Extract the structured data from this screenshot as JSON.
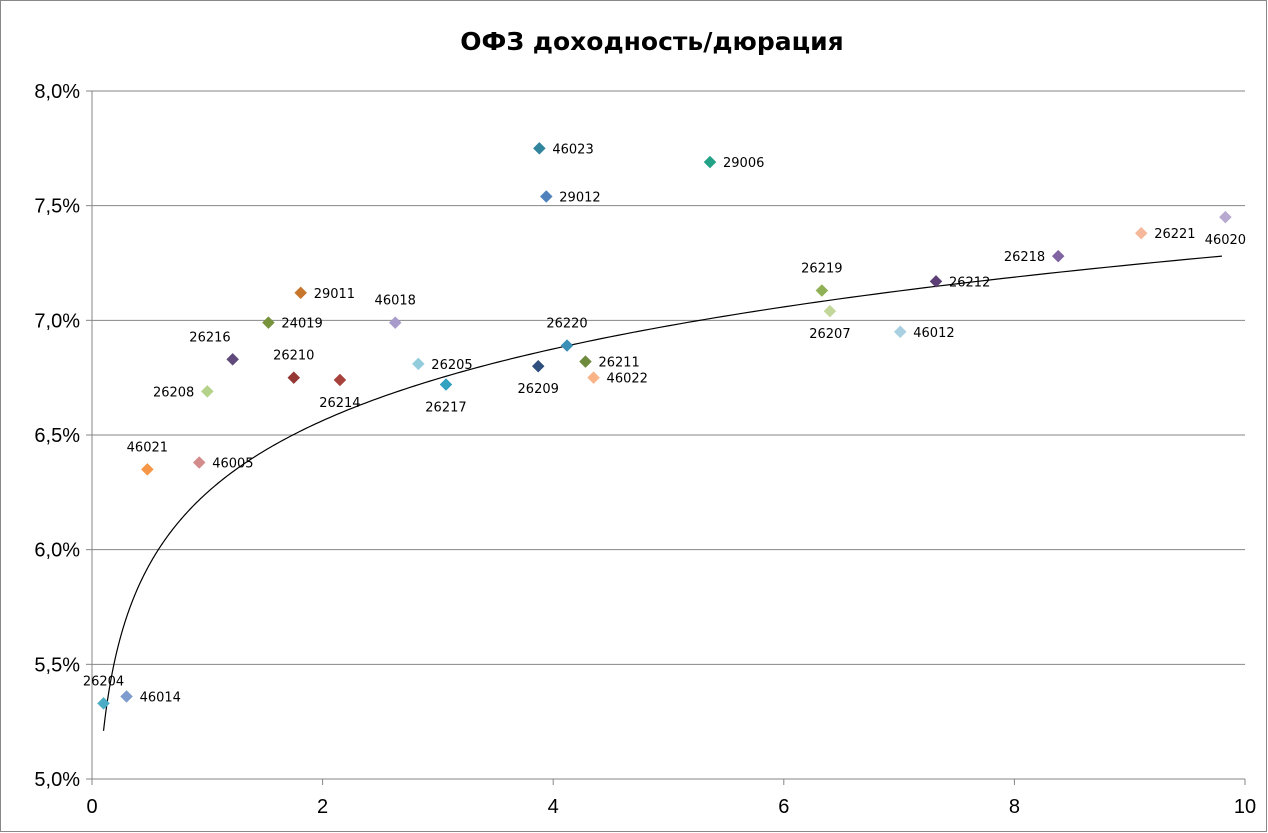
{
  "chart_data": {
    "type": "scatter",
    "title": "ОФЗ доходность/дюрация",
    "xlabel": "",
    "ylabel": "",
    "xlim": [
      0,
      10
    ],
    "ylim": [
      5.0,
      8.0
    ],
    "x_ticks": [
      0,
      2,
      4,
      6,
      8,
      10
    ],
    "y_ticks": [
      5.0,
      5.5,
      6.0,
      6.5,
      7.0,
      7.5,
      8.0
    ],
    "x_tick_labels": [
      "0",
      "2",
      "4",
      "6",
      "8",
      "10"
    ],
    "y_tick_labels": [
      "5,0%",
      "5,5%",
      "6,0%",
      "6,5%",
      "7,0%",
      "7,5%",
      "8,0%"
    ],
    "grid": "horizontal",
    "legend": "none",
    "trendline": {
      "type": "logarithmic",
      "from": [
        0.1,
        5.21
      ],
      "to": [
        9.8,
        7.28
      ]
    },
    "series": [
      {
        "label": "26204",
        "x": 0.1,
        "y": 5.33,
        "color": "#4bacc6",
        "label_pos": "above"
      },
      {
        "label": "46014",
        "x": 0.3,
        "y": 5.36,
        "color": "#7f9ccf",
        "label_pos": "right"
      },
      {
        "label": "46021",
        "x": 0.48,
        "y": 6.35,
        "color": "#f79646",
        "label_pos": "above"
      },
      {
        "label": "46005",
        "x": 0.93,
        "y": 6.38,
        "color": "#d48b8b",
        "label_pos": "right"
      },
      {
        "label": "26208",
        "x": 1.0,
        "y": 6.69,
        "color": "#b5d28a",
        "label_pos": "left"
      },
      {
        "label": "26216",
        "x": 1.22,
        "y": 6.83,
        "color": "#604a7b",
        "label_pos": "aboveleft"
      },
      {
        "label": "24019",
        "x": 1.53,
        "y": 6.99,
        "color": "#77933c",
        "label_pos": "right"
      },
      {
        "label": "26210",
        "x": 1.75,
        "y": 6.75,
        "color": "#953735",
        "label_pos": "above"
      },
      {
        "label": "29011",
        "x": 1.81,
        "y": 7.12,
        "color": "#c9762d",
        "label_pos": "right"
      },
      {
        "label": "26214",
        "x": 2.15,
        "y": 6.74,
        "color": "#a6423b",
        "label_pos": "below"
      },
      {
        "label": "46018",
        "x": 2.63,
        "y": 6.99,
        "color": "#a99bcb",
        "label_pos": "above"
      },
      {
        "label": "26205",
        "x": 2.83,
        "y": 6.81,
        "color": "#93cddd",
        "label_pos": "right"
      },
      {
        "label": "26217",
        "x": 3.07,
        "y": 6.72,
        "color": "#31a2bf",
        "label_pos": "below"
      },
      {
        "label": "26209",
        "x": 3.87,
        "y": 6.8,
        "color": "#2f4f7f",
        "label_pos": "below"
      },
      {
        "label": "46023",
        "x": 3.88,
        "y": 7.75,
        "color": "#31859c",
        "label_pos": "right"
      },
      {
        "label": "29012",
        "x": 3.94,
        "y": 7.54,
        "color": "#4f81bd",
        "label_pos": "right"
      },
      {
        "label": "26220",
        "x": 4.12,
        "y": 6.89,
        "color": "#3a8fb7",
        "label_pos": "above"
      },
      {
        "label": "26211",
        "x": 4.28,
        "y": 6.82,
        "color": "#6e8a3c",
        "label_pos": "right"
      },
      {
        "label": "46022",
        "x": 4.35,
        "y": 6.75,
        "color": "#fab387",
        "label_pos": "right"
      },
      {
        "label": "29006",
        "x": 5.36,
        "y": 7.69,
        "color": "#22a286",
        "label_pos": "right"
      },
      {
        "label": "26219",
        "x": 6.33,
        "y": 7.13,
        "color": "#8fb055",
        "label_pos": "above"
      },
      {
        "label": "26207",
        "x": 6.4,
        "y": 7.04,
        "color": "#c4d79b",
        "label_pos": "below"
      },
      {
        "label": "46012",
        "x": 7.01,
        "y": 6.95,
        "color": "#a8d0e0",
        "label_pos": "right"
      },
      {
        "label": "26212",
        "x": 7.32,
        "y": 7.17,
        "color": "#5d3f75",
        "label_pos": "right"
      },
      {
        "label": "26218",
        "x": 8.38,
        "y": 7.28,
        "color": "#8064a2",
        "label_pos": "left"
      },
      {
        "label": "26221",
        "x": 9.1,
        "y": 7.38,
        "color": "#f5b89a",
        "label_pos": "right"
      },
      {
        "label": "46020",
        "x": 9.83,
        "y": 7.45,
        "color": "#b7a9d0",
        "label_pos": "below"
      }
    ]
  }
}
